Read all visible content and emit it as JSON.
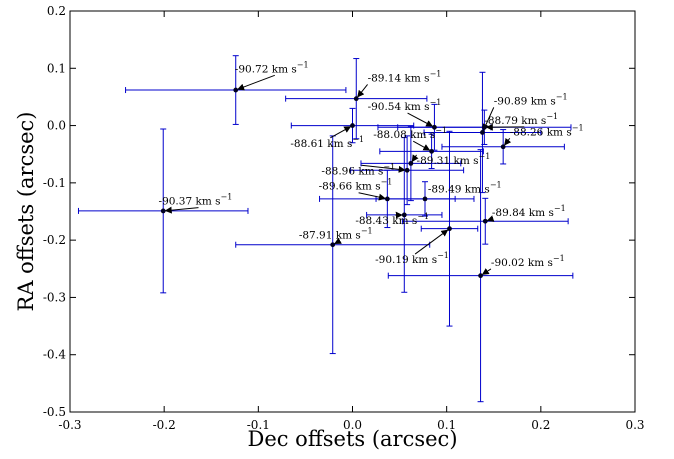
{
  "chart_data": {
    "type": "scatter",
    "title": "",
    "xlabel": "Dec offsets (arcsec)",
    "ylabel": "RA offsets (arcsec)",
    "xlim": [
      -0.3,
      0.3
    ],
    "ylim": [
      -0.5,
      0.2
    ],
    "xticks": [
      "-0.3",
      "-0.2",
      "-0.1",
      "0.0",
      "0.1",
      "0.2",
      "0.3"
    ],
    "yticks": [
      "0.2",
      "0.1",
      "0.0",
      "-0.1",
      "-0.2",
      "-0.3",
      "-0.4",
      "-0.5"
    ],
    "grid": false,
    "legend": "none",
    "series_color": "#0000cc",
    "points": [
      {
        "x": -0.124,
        "y": 0.062,
        "xerr": 0.117,
        "yerr": 0.06,
        "label": "-90.72 km s",
        "tx": -0.125,
        "ty": 0.093
      },
      {
        "x": 0.004,
        "y": 0.047,
        "xerr": 0.075,
        "yerr": 0.07,
        "label": "-89.14 km s",
        "tx": 0.016,
        "ty": 0.077
      },
      {
        "x": 0.0,
        "y": 0.0,
        "xerr": 0.065,
        "yerr": 0.03,
        "label": "-88.61 km s",
        "tx": -0.066,
        "ty": -0.037
      },
      {
        "x": 0.087,
        "y": -0.003,
        "xerr": 0.06,
        "yerr": 0.04,
        "label": "-90.54 km s",
        "tx": 0.016,
        "ty": 0.027
      },
      {
        "x": 0.138,
        "y": -0.012,
        "xerr": 0.062,
        "yerr": 0.105,
        "label": "-90.89 km s",
        "tx": 0.15,
        "ty": 0.037
      },
      {
        "x": 0.14,
        "y": -0.003,
        "xerr": 0.092,
        "yerr": 0.03,
        "label": "-88.79 km s",
        "tx": 0.14,
        "ty": 0.003
      },
      {
        "x": 0.16,
        "y": -0.037,
        "xerr": 0.065,
        "yerr": 0.03,
        "label": "-88.26 km s",
        "tx": 0.167,
        "ty": -0.017
      },
      {
        "x": 0.084,
        "y": -0.045,
        "xerr": 0.055,
        "yerr": 0.03,
        "label": "-88.08 km s",
        "tx": 0.022,
        "ty": -0.022
      },
      {
        "x": 0.062,
        "y": -0.066,
        "xerr": 0.053,
        "yerr": 0.065,
        "label": "-89.31 km s",
        "tx": 0.068,
        "ty": -0.067
      },
      {
        "x": 0.058,
        "y": -0.078,
        "xerr": 0.06,
        "yerr": 0.06,
        "label": "-88.96 km s",
        "tx": -0.033,
        "ty": -0.085
      },
      {
        "x": 0.037,
        "y": -0.128,
        "xerr": 0.072,
        "yerr": 0.05,
        "label": "-89.66 km s",
        "tx": -0.036,
        "ty": -0.112
      },
      {
        "x": 0.077,
        "y": -0.128,
        "xerr": 0.052,
        "yerr": 0.03,
        "label": "-89.49 km s",
        "tx": 0.08,
        "ty": -0.117
      },
      {
        "x": -0.201,
        "y": -0.149,
        "xerr": 0.09,
        "yerr": 0.143,
        "label": "-90.37 km s",
        "tx": -0.206,
        "ty": -0.138
      },
      {
        "x": 0.055,
        "y": -0.156,
        "xerr": 0.04,
        "yerr": 0.135,
        "label": "-88.43 km s",
        "tx": 0.003,
        "ty": -0.172
      },
      {
        "x": 0.141,
        "y": -0.167,
        "xerr": 0.088,
        "yerr": 0.04,
        "label": "-89.84 km s",
        "tx": 0.148,
        "ty": -0.158
      },
      {
        "x": -0.021,
        "y": -0.208,
        "xerr": 0.103,
        "yerr": 0.19,
        "label": "-87.91 km s",
        "tx": -0.057,
        "ty": -0.197
      },
      {
        "x": 0.103,
        "y": -0.18,
        "xerr": 0.03,
        "yerr": 0.17,
        "label": "-90.19 km s",
        "tx": 0.024,
        "ty": -0.24
      },
      {
        "x": 0.136,
        "y": -0.262,
        "xerr": 0.098,
        "yerr": 0.22,
        "label": "-90.02 km s",
        "tx": 0.147,
        "ty": -0.245
      }
    ],
    "unit_superscript": "−1"
  }
}
